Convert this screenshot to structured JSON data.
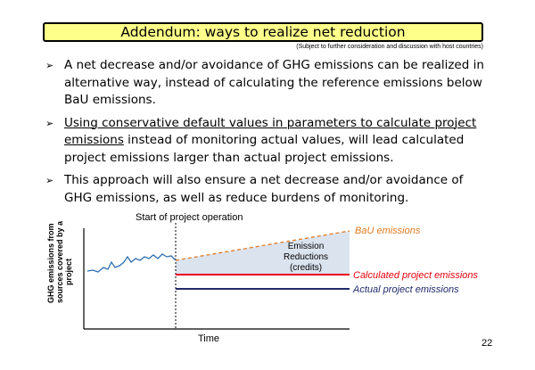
{
  "slide": {
    "title": "Addendum: ways to realize net reduction",
    "subtitle": "(Subject to further consideration and discussion with host countries)",
    "page_number": "22"
  },
  "bullets": [
    {
      "text": "A net decrease and/or avoidance of GHG emissions can be realized in alternative way, instead of calculating the reference emissions below BaU emissions."
    },
    {
      "underlined": "Using conservative default values in parameters to calculate project emissions",
      "text": " instead of monitoring actual values, will lead calculated project emissions larger than actual project emissions."
    },
    {
      "text": "This approach will also ensure a net decrease and/or avoidance of GHG emissions, as well as reduce burdens of monitoring."
    }
  ],
  "diagram": {
    "start_label": "Start of project operation",
    "y_axis_label_lines": [
      "GHG emissions from",
      "sources covered by a",
      "project"
    ],
    "x_axis_label": "Time",
    "reductions_label_lines": [
      "Emission",
      "Reductions",
      "(credits)"
    ],
    "legend": {
      "bau": "BaU emissions",
      "calculated": "Calculated project emissions",
      "actual": "Actual project emissions"
    },
    "colors": {
      "bau": "#e07a1f",
      "calculated": "#e8000b",
      "actual": "#1f2a6b",
      "history": "#2f6fb0",
      "reductions_fill": "#dbe3ef",
      "title_bg": "#fdff8a"
    }
  }
}
